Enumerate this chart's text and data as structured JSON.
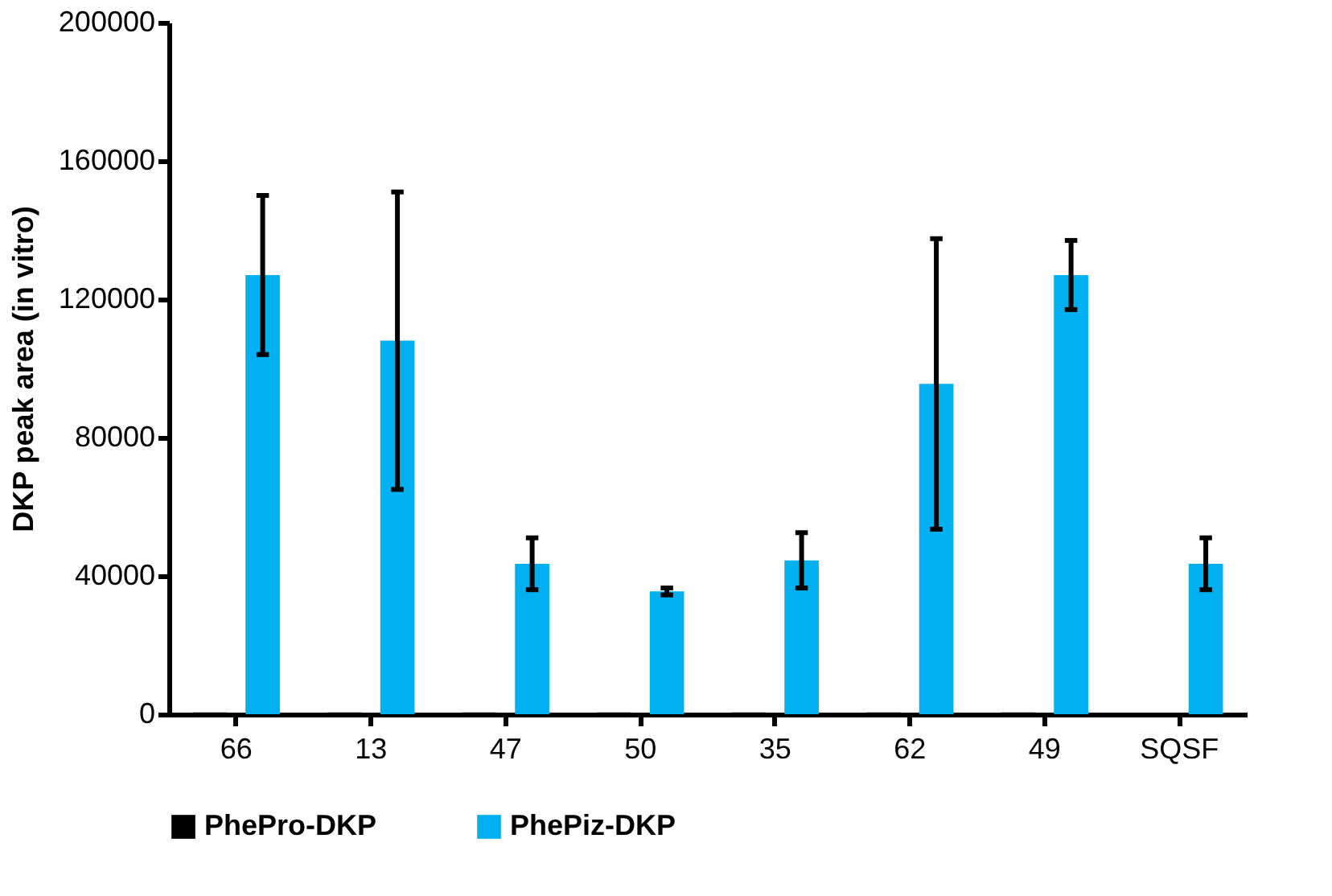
{
  "chart_data": {
    "type": "bar",
    "ylabel": "DKP peak area (in vitro)",
    "categories": [
      "66",
      "13",
      "47",
      "50",
      "35",
      "62",
      "49",
      "SQSF"
    ],
    "series": [
      {
        "name": "PhePro-DKP",
        "color": "#000000",
        "values": [
          500,
          500,
          500,
          500,
          500,
          500,
          500,
          null
        ]
      },
      {
        "name": "PhePiz-DKP",
        "color": "#00b0f0",
        "values": [
          127000,
          108000,
          43500,
          35500,
          44500,
          95500,
          127000,
          43500
        ],
        "errors": [
          23000,
          43000,
          7500,
          1000,
          8000,
          42000,
          10000,
          7500
        ]
      }
    ],
    "ylim": [
      0,
      200000
    ],
    "yticks": [
      0,
      40000,
      80000,
      120000,
      160000,
      200000
    ],
    "grid": false,
    "legend": "bottom"
  }
}
